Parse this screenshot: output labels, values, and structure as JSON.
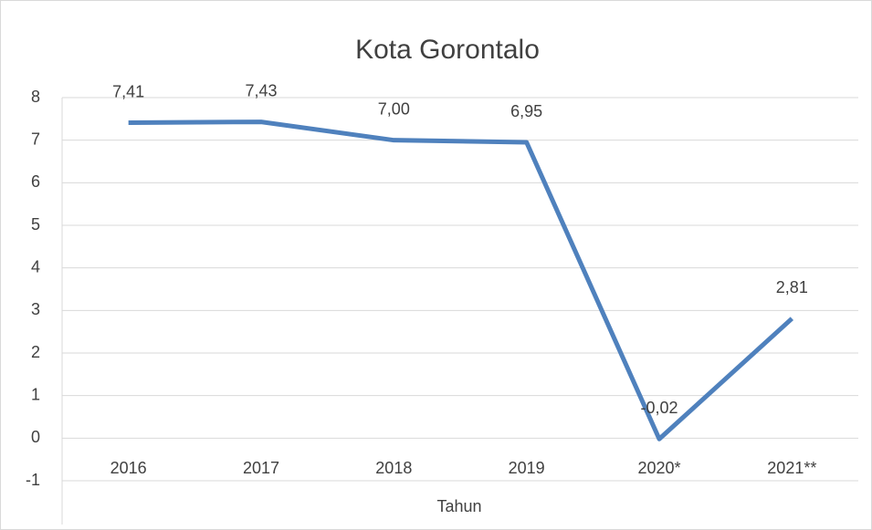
{
  "chart_data": {
    "type": "line",
    "title": "Kota Gorontalo",
    "x_label": "Tahun",
    "categories": [
      "2016",
      "2017",
      "2018",
      "2019",
      "2020*",
      "2021**"
    ],
    "series": [
      {
        "color": "#4f81bd",
        "values": [
          7.41,
          7.43,
          7.0,
          6.95,
          -0.02,
          2.81
        ],
        "value_labels": [
          "7,41",
          "7,43",
          "7,00",
          "6,95",
          "-0,02",
          "2,81"
        ]
      }
    ],
    "ylim": [
      -1,
      8
    ],
    "yticks": [
      -1,
      0,
      1,
      2,
      3,
      4,
      5,
      6,
      7,
      8
    ],
    "grid": true
  }
}
